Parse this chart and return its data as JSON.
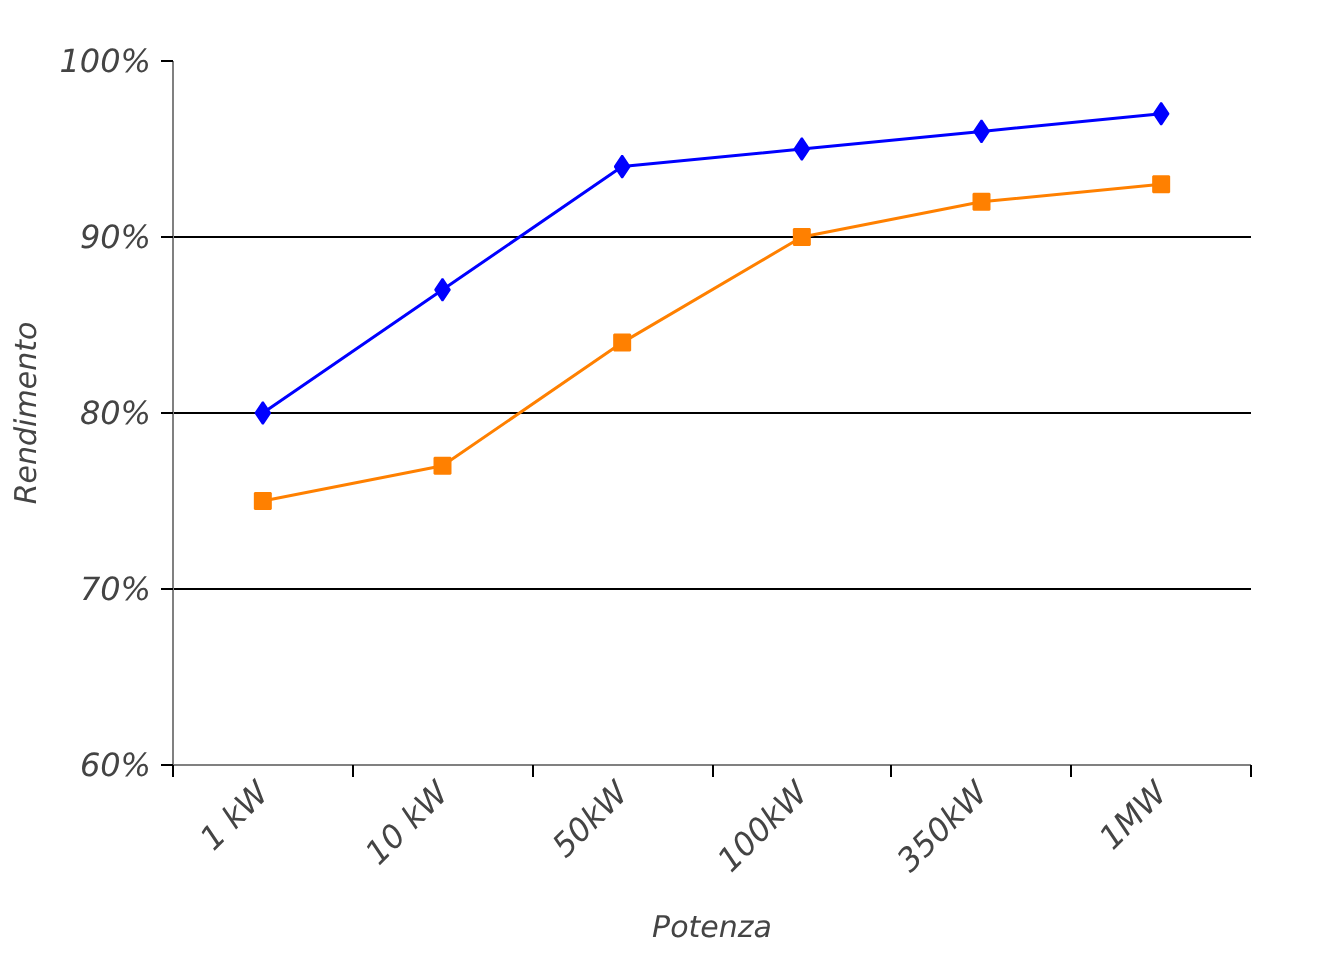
{
  "chart_data": {
    "type": "line",
    "xlabel": "Potenza",
    "ylabel": "Rendimento",
    "categories": [
      "1 kW",
      "10 kW",
      "50kW",
      "100kW",
      "350kW",
      "1MW"
    ],
    "series": [
      {
        "color": "#0000ff",
        "marker": "diamond",
        "values": [
          80,
          87,
          94,
          95,
          96,
          97
        ]
      },
      {
        "color": "#ff8000",
        "marker": "square",
        "values": [
          75,
          77,
          84,
          90,
          92,
          93
        ]
      }
    ],
    "ylim": [
      60,
      100
    ],
    "yticks": [
      {
        "value": 60,
        "label": "60%"
      },
      {
        "value": 70,
        "label": "70%"
      },
      {
        "value": 80,
        "label": "80%"
      },
      {
        "value": 90,
        "label": "90%"
      },
      {
        "value": 100,
        "label": "100%"
      }
    ],
    "grid": "y"
  }
}
